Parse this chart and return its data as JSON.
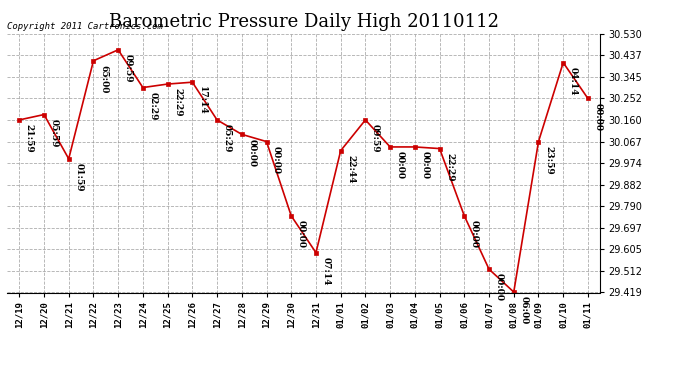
{
  "title": "Barometric Pressure Daily High 20110112",
  "copyright": "Copyright 2011 Cartronics.com",
  "x_labels": [
    "12/19",
    "12/20",
    "12/21",
    "12/22",
    "12/23",
    "12/24",
    "12/25",
    "12/26",
    "12/27",
    "12/28",
    "12/29",
    "12/30",
    "12/31",
    "01/01",
    "01/02",
    "01/03",
    "01/04",
    "01/05",
    "01/06",
    "01/07",
    "01/08",
    "01/09",
    "01/10",
    "01/11"
  ],
  "y_values": [
    30.16,
    30.183,
    29.993,
    30.414,
    30.461,
    30.299,
    30.314,
    30.322,
    30.16,
    30.098,
    30.067,
    29.748,
    29.59,
    30.028,
    30.16,
    30.044,
    30.044,
    30.037,
    29.748,
    29.519,
    29.421,
    30.067,
    30.406,
    30.252
  ],
  "point_labels": [
    "21:59",
    "05:59",
    "01:59",
    "65:00",
    "09:59",
    "02:29",
    "22:29",
    "17:14",
    "05:29",
    "00:00",
    "00:00",
    "00:00",
    "07:14",
    "22:44",
    "09:59",
    "00:00",
    "00:00",
    "22:29",
    "00:00",
    "00:00",
    "06:00",
    "23:59",
    "04:14",
    "00:00"
  ],
  "ylim_min": 29.419,
  "ylim_max": 30.53,
  "yticks": [
    29.419,
    29.512,
    29.605,
    29.697,
    29.79,
    29.882,
    29.974,
    30.067,
    30.16,
    30.252,
    30.345,
    30.437,
    30.53
  ],
  "line_color": "#cc0000",
  "marker_color": "#cc0000",
  "bg_color": "#ffffff",
  "grid_color": "#999999",
  "title_fontsize": 13,
  "annot_fontsize": 6.5,
  "copyright_fontsize": 6.5
}
